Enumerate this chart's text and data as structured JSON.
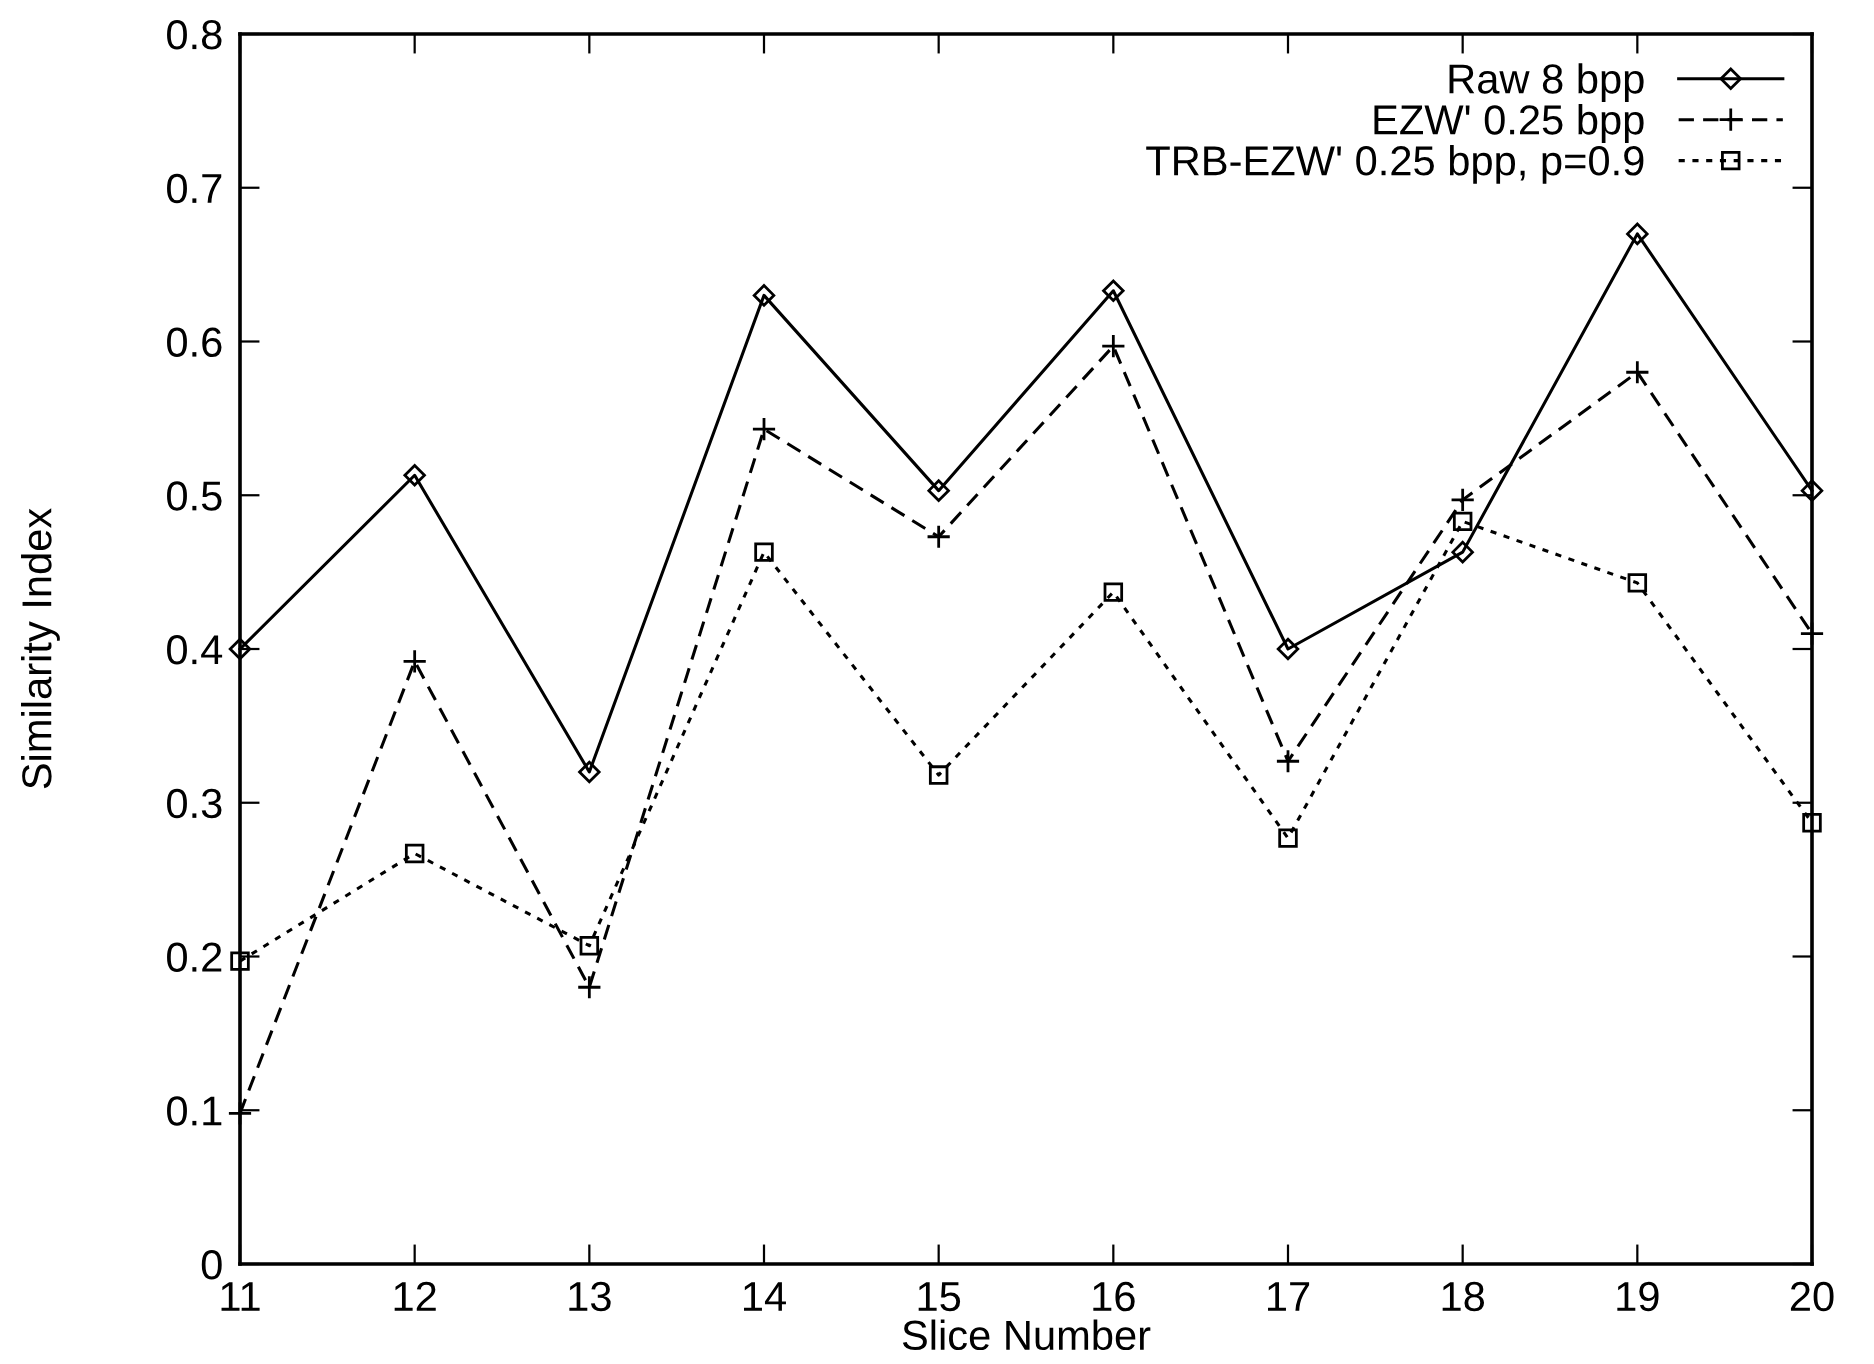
{
  "chart_data": {
    "type": "line",
    "xlabel": "Slice Number",
    "ylabel": "Similarity Index",
    "x": [
      11,
      12,
      13,
      14,
      15,
      16,
      17,
      18,
      19,
      20
    ],
    "xlim": [
      11,
      20
    ],
    "xticks": [
      11,
      12,
      13,
      14,
      15,
      16,
      17,
      18,
      19,
      20
    ],
    "ylim": [
      0,
      0.8
    ],
    "yticks": [
      0,
      0.1,
      0.2,
      0.3,
      0.4,
      0.5,
      0.6,
      0.7,
      0.8
    ],
    "grid": false,
    "legend": "top right",
    "series": [
      {
        "name": "Raw 8 bpp",
        "color": "#000000",
        "marker": "diamond",
        "line_style": "solid",
        "values": [
          0.4,
          0.513,
          0.32,
          0.63,
          0.503,
          0.633,
          0.4,
          0.463,
          0.67,
          0.503
        ]
      },
      {
        "name": "EZW' 0.25 bpp",
        "color": "#000000",
        "marker": "cross",
        "line_style": "dashed",
        "values": [
          0.098,
          0.392,
          0.18,
          0.543,
          0.473,
          0.597,
          0.327,
          0.497,
          0.58,
          0.41
        ]
      },
      {
        "name": "TRB-EZW' 0.25 bpp, p=0.9",
        "color": "#000000",
        "marker": "square",
        "line_style": "dotted",
        "values": [
          0.197,
          0.267,
          0.207,
          0.463,
          0.318,
          0.437,
          0.277,
          0.483,
          0.443,
          0.287
        ]
      }
    ]
  }
}
